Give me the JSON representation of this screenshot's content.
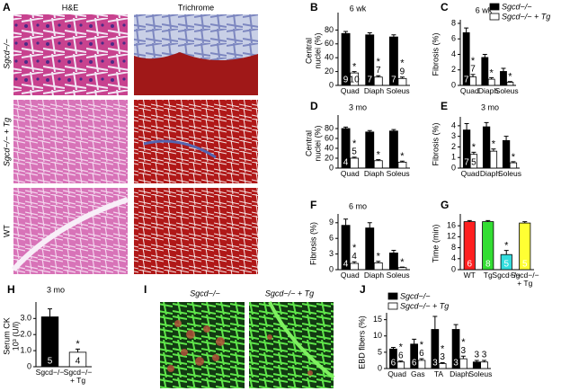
{
  "image_panels": {
    "a": {
      "label": "A",
      "columns": [
        "H&E",
        "Trichrome"
      ],
      "rows": [
        "Sgcd−/−",
        "Sgcd−/− + Tg",
        "WT"
      ]
    },
    "i": {
      "label": "I",
      "columns": [
        "Sgcd−/−",
        "Sgcd−/− + Tg"
      ]
    }
  },
  "chart_data": [
    {
      "type": "bar",
      "label": "B",
      "title": "6 wk",
      "ylabel": [
        "Central",
        "nuclei (%)"
      ],
      "categories": [
        "Quad",
        "Diaph",
        "Soleus"
      ],
      "ylim": [
        0,
        100
      ],
      "yticks": [
        0,
        20,
        40,
        60,
        80
      ],
      "series": [
        {
          "color": "#000000",
          "values": [
            75,
            73,
            70
          ],
          "errors": [
            3,
            3,
            3
          ],
          "n": [
            9,
            7,
            7
          ],
          "sig": [
            null,
            null,
            null
          ]
        },
        {
          "color": "#ffffff",
          "values": [
            18,
            12,
            10
          ],
          "errors": [
            2,
            2,
            2
          ],
          "n": [
            10,
            7,
            9
          ],
          "sig": [
            "*",
            "*",
            "*"
          ]
        }
      ]
    },
    {
      "type": "bar",
      "label": "C",
      "title": "6 wk",
      "ylabel": [
        "Fibrosis (%)"
      ],
      "categories": [
        "Quad",
        "Diaph",
        "Soleus"
      ],
      "ylim": [
        0,
        8
      ],
      "yticks": [
        0,
        2,
        4,
        6,
        8
      ],
      "legend": true,
      "series": [
        {
          "name": "Sgcd−/−",
          "color": "#000000",
          "values": [
            6.8,
            3.6,
            1.8
          ],
          "errors": [
            0.6,
            0.4,
            0.4
          ],
          "n": [
            7,
            null,
            null
          ],
          "sig": [
            null,
            null,
            null
          ]
        },
        {
          "name": "Sgcd−/− + Tg",
          "color": "#ffffff",
          "values": [
            1.1,
            0.8,
            0.4
          ],
          "errors": [
            0.3,
            0.2,
            0.1
          ],
          "n": [
            7,
            null,
            null
          ],
          "sig": [
            "*",
            "*",
            "*"
          ]
        }
      ]
    },
    {
      "type": "bar",
      "label": "D",
      "title": "3 mo",
      "ylabel": [
        "Central",
        "nuclei (%)"
      ],
      "categories": [
        "Quad",
        "Diaph",
        "Soleus"
      ],
      "ylim": [
        0,
        100
      ],
      "yticks": [
        0,
        20,
        40,
        60,
        80
      ],
      "series": [
        {
          "color": "#000000",
          "values": [
            80,
            73,
            75
          ],
          "errors": [
            3,
            3,
            3
          ],
          "n": [
            4,
            null,
            null
          ],
          "sig": [
            null,
            null,
            null
          ]
        },
        {
          "color": "#ffffff",
          "values": [
            20,
            15,
            12
          ],
          "errors": [
            2,
            2,
            2
          ],
          "n": [
            5,
            null,
            null
          ],
          "sig": [
            "*",
            "*",
            "*"
          ]
        }
      ]
    },
    {
      "type": "bar",
      "label": "E",
      "title": "3 mo",
      "ylabel": [
        "Fibrosis (%)"
      ],
      "categories": [
        "Quad",
        "Diaph",
        "Soleus"
      ],
      "ylim": [
        0,
        4.5
      ],
      "yticks": [
        0,
        1,
        2,
        3,
        4
      ],
      "series": [
        {
          "color": "#000000",
          "values": [
            3.6,
            3.9,
            2.6
          ],
          "errors": [
            0.6,
            0.4,
            0.4
          ],
          "n": [
            7,
            null,
            null
          ],
          "sig": [
            null,
            null,
            null
          ]
        },
        {
          "color": "#ffffff",
          "values": [
            1.3,
            1.6,
            0.5
          ],
          "errors": [
            0.2,
            0.2,
            0.1
          ],
          "n": [
            5,
            null,
            null
          ],
          "sig": [
            "*",
            "*",
            "*"
          ]
        }
      ]
    },
    {
      "type": "bar",
      "label": "F",
      "title": "6 mo",
      "ylabel": [
        "Fibrosis (%)"
      ],
      "categories": [
        "Quad",
        "Diaph",
        "Soleus"
      ],
      "ylim": [
        0,
        10
      ],
      "yticks": [
        0,
        3,
        6,
        9
      ],
      "series": [
        {
          "color": "#000000",
          "values": [
            8.5,
            8.0,
            3.2
          ],
          "errors": [
            1.2,
            1.0,
            0.5
          ],
          "n": [
            4,
            null,
            null
          ],
          "sig": [
            null,
            null,
            null
          ]
        },
        {
          "color": "#ffffff",
          "values": [
            1.2,
            1.3,
            0.4
          ],
          "errors": [
            0.3,
            0.3,
            0.1
          ],
          "n": [
            4,
            null,
            null
          ],
          "sig": [
            "*",
            "*",
            "*"
          ]
        }
      ]
    },
    {
      "type": "bar",
      "label": "G",
      "ylabel": [
        "Time (min)"
      ],
      "categories": [
        "WT",
        "Tg",
        "Sgcd−/−",
        "Sgcd−/− + Tg"
      ],
      "ylim": [
        0,
        19
      ],
      "yticks": [
        0,
        4,
        8,
        12,
        16
      ],
      "series": [
        {
          "colors": [
            "#ff2020",
            "#33dd33",
            "#33dddd",
            "#ffff33"
          ],
          "values": [
            17.5,
            17.5,
            5.5,
            17
          ],
          "errors": [
            0.4,
            0.4,
            1.5,
            0.5
          ],
          "n": [
            6,
            8,
            5,
            5
          ],
          "sig": [
            null,
            null,
            "*",
            null
          ]
        }
      ]
    },
    {
      "type": "bar",
      "label": "H",
      "title": "3 mo",
      "ylabel": [
        "Serum CK",
        "10³ (U/l)"
      ],
      "categories": [
        "Sgcd−/−",
        "Sgcd−/− + Tg"
      ],
      "ylim": [
        0,
        3.8
      ],
      "yticks": [
        0,
        {
          "value": 1,
          "label": "1.0"
        },
        {
          "value": 2,
          "label": "2.0"
        },
        {
          "value": 3,
          "label": "3.0"
        }
      ],
      "series": [
        {
          "colors": [
            "#000000",
            "#ffffff"
          ],
          "values": [
            3.1,
            0.9
          ],
          "errors": [
            0.5,
            0.2
          ],
          "n": [
            5,
            4
          ],
          "sig": [
            null,
            "*"
          ]
        }
      ]
    },
    {
      "type": "bar",
      "label": "J",
      "ylabel": [
        "EBD fibers (%)"
      ],
      "categories": [
        "Quad",
        "Gas",
        "TA",
        "Diaph",
        "Soleus"
      ],
      "ylim": [
        0,
        16
      ],
      "yticks": [
        0,
        5,
        10,
        15
      ],
      "legend": true,
      "series": [
        {
          "name": "Sgcd−/−",
          "color": "#000000",
          "values": [
            6,
            7.5,
            12,
            12,
            2
          ],
          "errors": [
            0.5,
            1.5,
            4,
            1.5,
            0.5
          ],
          "n": [
            6,
            6,
            3,
            3,
            3
          ],
          "sig": [
            null,
            null,
            null,
            null,
            null
          ]
        },
        {
          "name": "Sgcd−/− + Tg",
          "color": "#ffffff",
          "values": [
            2,
            2.5,
            1.5,
            3,
            2
          ],
          "errors": [
            0.3,
            0.5,
            0.3,
            0.8,
            0.5
          ],
          "n": [
            6,
            6,
            3,
            3,
            3
          ],
          "sig": [
            "*",
            "*",
            "*",
            "*",
            null
          ]
        }
      ]
    }
  ]
}
